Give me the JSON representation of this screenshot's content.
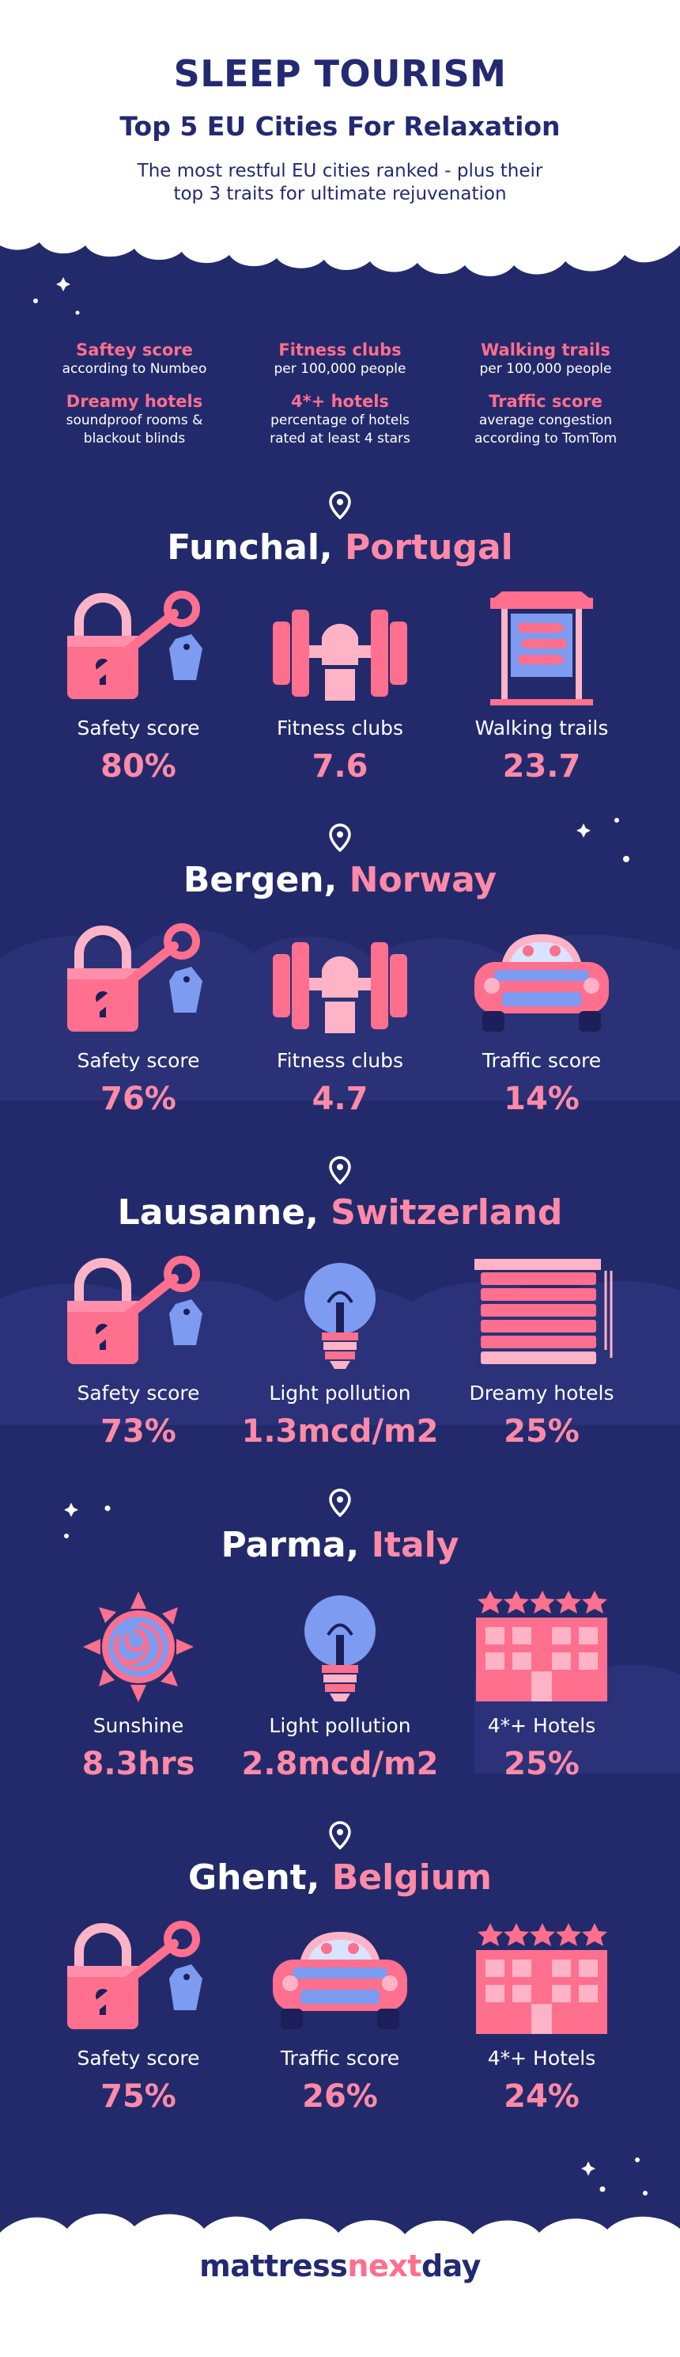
{
  "header": {
    "title": "SLEEP TOURISM",
    "subtitle": "Top 5 EU Cities For Relaxation",
    "description_line1": "The most restful EU cities ranked - plus their",
    "description_line2": "top 3 traits for ultimate rejuvenation"
  },
  "legend": [
    {
      "title": "Saftey score",
      "desc1": "according to Numbeo",
      "desc2": ""
    },
    {
      "title": "Fitness clubs",
      "desc1": "per 100,000 people",
      "desc2": ""
    },
    {
      "title": "Walking trails",
      "desc1": "per 100,000 people",
      "desc2": ""
    },
    {
      "title": "Dreamy hotels",
      "desc1": "soundproof rooms &",
      "desc2": "blackout blinds"
    },
    {
      "title": "4*+ hotels",
      "desc1": "percentage of hotels",
      "desc2": "rated at least 4 stars"
    },
    {
      "title": "Traffic score",
      "desc1": "average congestion",
      "desc2": "according to TomTom"
    }
  ],
  "cities": [
    {
      "city": "Funchal,",
      "country": "Portugal",
      "metrics": [
        {
          "icon": "padlock-key-icon",
          "label": "Safety score",
          "value": "80%"
        },
        {
          "icon": "dumbbell-icon",
          "label": "Fitness clubs",
          "value": "7.6"
        },
        {
          "icon": "trail-signpost-icon",
          "label": "Walking trails",
          "value": "23.7"
        }
      ]
    },
    {
      "city": "Bergen,",
      "country": "Norway",
      "metrics": [
        {
          "icon": "padlock-key-icon",
          "label": "Safety score",
          "value": "76%"
        },
        {
          "icon": "dumbbell-icon",
          "label": "Fitness clubs",
          "value": "4.7"
        },
        {
          "icon": "car-icon",
          "label": "Traffic score",
          "value": "14%"
        }
      ]
    },
    {
      "city": "Lausanne,",
      "country": "Switzerland",
      "metrics": [
        {
          "icon": "padlock-key-icon",
          "label": "Safety score",
          "value": "73%"
        },
        {
          "icon": "lightbulb-icon",
          "label": "Light pollution",
          "value": "1.3mcd/m2"
        },
        {
          "icon": "window-blinds-icon",
          "label": "Dreamy hotels",
          "value": "25%"
        }
      ]
    },
    {
      "city": "Parma,",
      "country": "Italy",
      "metrics": [
        {
          "icon": "sun-icon",
          "label": "Sunshine",
          "value": "8.3hrs"
        },
        {
          "icon": "lightbulb-icon",
          "label": "Light pollution",
          "value": "2.8mcd/m2"
        },
        {
          "icon": "hotel-stars-icon",
          "label": "4*+ Hotels",
          "value": "25%"
        }
      ]
    },
    {
      "city": "Ghent,",
      "country": "Belgium",
      "metrics": [
        {
          "icon": "padlock-key-icon",
          "label": "Safety score",
          "value": "75%"
        },
        {
          "icon": "car-icon",
          "label": "Traffic score",
          "value": "26%"
        },
        {
          "icon": "hotel-stars-icon",
          "label": "4*+ Hotels",
          "value": "24%"
        }
      ]
    }
  ],
  "logo": {
    "part1": "mattress",
    "part2": "next",
    "part3": "day"
  },
  "colors": {
    "navy": "#232a6b",
    "pink": "#ff6f8e",
    "light_pink": "#ff8aa8",
    "white": "#ffffff"
  }
}
